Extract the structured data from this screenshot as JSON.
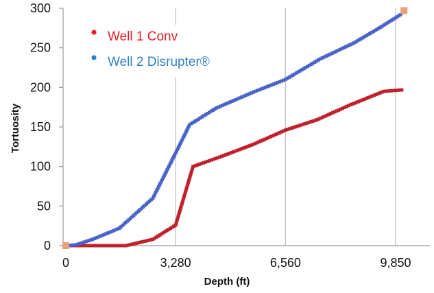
{
  "chart_data": {
    "type": "scatter",
    "xlabel": "Depth (ft)",
    "ylabel": "Tortuosity",
    "xlim": [
      0,
      10100
    ],
    "ylim": [
      0,
      300
    ],
    "x_ticks": [
      {
        "value": 0,
        "label": "0"
      },
      {
        "value": 3280,
        "label": "3,280"
      },
      {
        "value": 6560,
        "label": "6,560"
      },
      {
        "value": 9850,
        "label": "9,850"
      }
    ],
    "y_ticks": [
      {
        "value": 0,
        "label": "0"
      },
      {
        "value": 50,
        "label": "50"
      },
      {
        "value": 100,
        "label": "100"
      },
      {
        "value": 150,
        "label": "150"
      },
      {
        "value": 200,
        "label": "200"
      },
      {
        "value": 250,
        "label": "250"
      },
      {
        "value": 300,
        "label": "300"
      }
    ],
    "grid": "vertical gridlines only",
    "legend_position": "top-left",
    "series": [
      {
        "name": "Well 1 Conv",
        "color": "#e31b23",
        "marker_color": "#c0202c",
        "points": [
          [
            0,
            0
          ],
          [
            1800,
            0
          ],
          [
            2600,
            8
          ],
          [
            3280,
            26
          ],
          [
            3800,
            100
          ],
          [
            4600,
            112
          ],
          [
            5600,
            128
          ],
          [
            6560,
            146
          ],
          [
            7500,
            159
          ],
          [
            8500,
            178
          ],
          [
            9500,
            195
          ],
          [
            10100,
            197
          ]
        ]
      },
      {
        "name": "Well 2 Disrupter®",
        "color": "#2f7fc9",
        "marker_color": "#4a63c8",
        "points": [
          [
            0,
            0
          ],
          [
            300,
            1
          ],
          [
            800,
            8
          ],
          [
            1600,
            22
          ],
          [
            2600,
            60
          ],
          [
            3280,
            117
          ],
          [
            3700,
            153
          ],
          [
            4500,
            174
          ],
          [
            5600,
            194
          ],
          [
            6560,
            210
          ],
          [
            7600,
            236
          ],
          [
            8600,
            256
          ],
          [
            9400,
            276
          ],
          [
            10000,
            292
          ],
          [
            10100,
            297
          ]
        ]
      }
    ],
    "endpoint_markers": [
      {
        "x": 0,
        "y": 0,
        "color": "#e8a07a"
      },
      {
        "x": 10100,
        "y": 297,
        "color": "#e8a07a"
      }
    ]
  }
}
